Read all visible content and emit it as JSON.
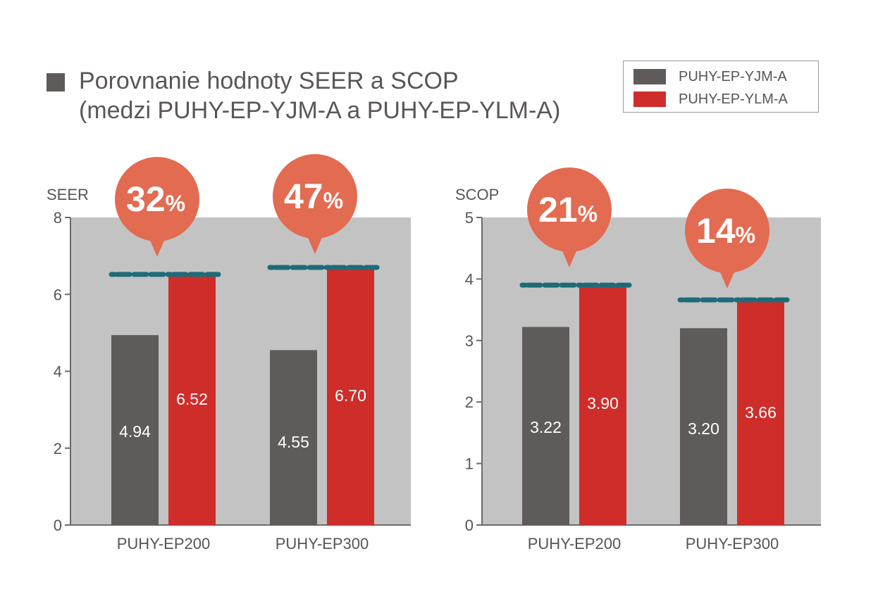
{
  "title": {
    "line1": "Porovnanie hodnoty SEER a SCOP",
    "line2": "(medzi PUHY-EP-YJM-A a PUHY-EP-YLM-A)"
  },
  "legend": [
    {
      "label": "PUHY-EP-YJM-A",
      "color": "#5f5b5a"
    },
    {
      "label": "PUHY-EP-YLM-A",
      "color": "#cf2d2a"
    }
  ],
  "colors": {
    "plot_background": "#c3c3c3",
    "axis": "#6b6b6b",
    "bubble": "#e26b52",
    "dashed_line": "#1e6b78"
  },
  "chart_data": [
    {
      "type": "bar",
      "ylabel": "SEER",
      "ylim": [
        0,
        8
      ],
      "yticks": [
        0,
        2,
        4,
        6,
        8
      ],
      "categories": [
        "PUHY-EP200",
        "PUHY-EP300"
      ],
      "series": [
        {
          "name": "PUHY-EP-YJM-A",
          "values": [
            4.94,
            4.55
          ],
          "labels": [
            "4.94",
            "4.55"
          ]
        },
        {
          "name": "PUHY-EP-YLM-A",
          "values": [
            6.52,
            6.7
          ],
          "labels": [
            "6.52",
            "6.70"
          ]
        }
      ],
      "improvements": [
        {
          "number": "32",
          "unit": "%"
        },
        {
          "number": "47",
          "unit": "%"
        }
      ]
    },
    {
      "type": "bar",
      "ylabel": "SCOP",
      "ylim": [
        0,
        5
      ],
      "yticks": [
        0,
        1,
        2,
        3,
        4,
        5
      ],
      "categories": [
        "PUHY-EP200",
        "PUHY-EP300"
      ],
      "series": [
        {
          "name": "PUHY-EP-YJM-A",
          "values": [
            3.22,
            3.2
          ],
          "labels": [
            "3.22",
            "3.20"
          ]
        },
        {
          "name": "PUHY-EP-YLM-A",
          "values": [
            3.9,
            3.66
          ],
          "labels": [
            "3.90",
            "3.66"
          ]
        }
      ],
      "improvements": [
        {
          "number": "21",
          "unit": "%"
        },
        {
          "number": "14",
          "unit": "%"
        }
      ]
    }
  ]
}
